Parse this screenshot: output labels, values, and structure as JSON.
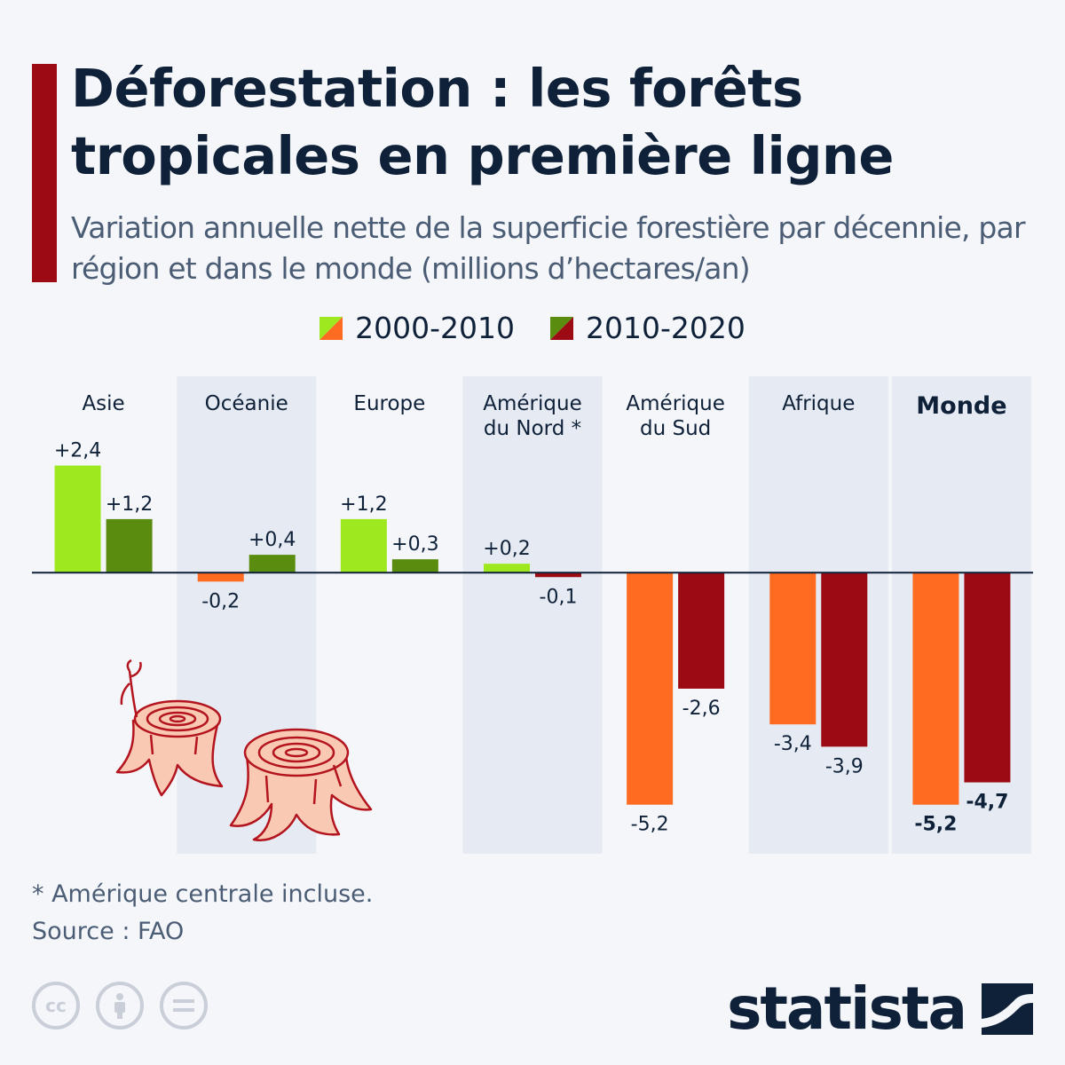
{
  "title": "Déforestation : les forêts tropicales en première ligne",
  "subtitle": "Variation annuelle nette de la superficie forestière par décennie, par région et dans le monde (millions d’hectares/an)",
  "legend": [
    {
      "label": "2000-2010",
      "pos_color": "#9ee81f",
      "neg_color": "#ff6b21"
    },
    {
      "label": "2010-2020",
      "pos_color": "#5a8c10",
      "neg_color": "#9c0a13"
    }
  ],
  "chart_data": {
    "type": "bar",
    "categories": [
      "Asie",
      "Océanie",
      "Europe",
      "Amérique du Nord *",
      "Amérique du Sud",
      "Afrique",
      "Monde"
    ],
    "category_lines": [
      [
        "Asie"
      ],
      [
        "Océanie"
      ],
      [
        "Europe"
      ],
      [
        "Amérique",
        "du Nord *"
      ],
      [
        "Amérique",
        "du Sud"
      ],
      [
        "Afrique"
      ],
      [
        "Monde"
      ]
    ],
    "series": [
      {
        "name": "2000-2010",
        "values": [
          2.4,
          -0.2,
          1.2,
          0.2,
          -5.2,
          -3.4,
          -5.2
        ],
        "labels": [
          "+2,4",
          "-0,2",
          "+1,2",
          "+0,2",
          "-5,2",
          "-3,4",
          "-5,2"
        ]
      },
      {
        "name": "2010-2020",
        "values": [
          1.2,
          0.4,
          0.3,
          -0.1,
          -2.6,
          -3.9,
          -4.7
        ],
        "labels": [
          "+1,2",
          "+0,4",
          "+0,3",
          "-0,1",
          "-2,6",
          "-3,9",
          "-4,7"
        ]
      }
    ],
    "ylim": [
      -6.3,
      4.4
    ],
    "shaded_categories": [
      1,
      3,
      5,
      6
    ],
    "highlight_category": 6,
    "colors": {
      "pos_2000": "#9ee81f",
      "pos_2010": "#5a8c10",
      "neg_2000": "#ff6b21",
      "neg_2010": "#9c0a13",
      "shade": "#e6eaf2",
      "axis": "#0e2138"
    }
  },
  "footnote": "* Amérique centrale incluse.",
  "source": "Source : FAO",
  "logo_text": "statista",
  "cc_icons": [
    "cc-icon",
    "by-icon",
    "nd-icon"
  ]
}
